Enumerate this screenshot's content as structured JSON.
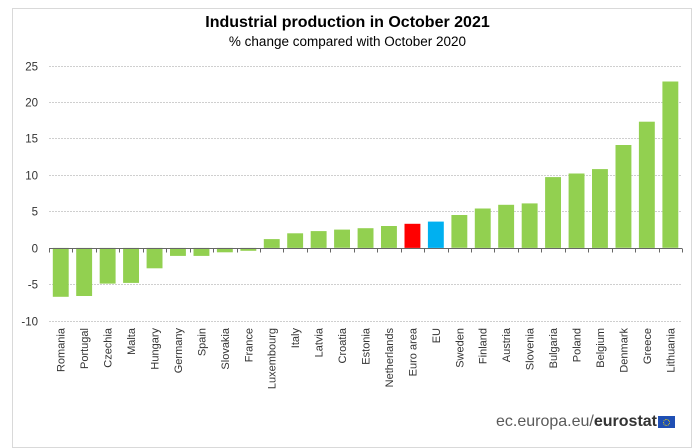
{
  "chart_data": {
    "type": "bar",
    "title": "Industrial production in October 2021",
    "subtitle": "% change compared with October 2020",
    "xlabel": "",
    "ylabel": "",
    "ylim": [
      -10,
      25
    ],
    "yticks": [
      25,
      20,
      15,
      10,
      5,
      0,
      -5,
      -10
    ],
    "grid": true,
    "legend": "none",
    "categories": [
      "Romania",
      "Portugal",
      "Czechia",
      "Malta",
      "Hungary",
      "Germany",
      "Spain",
      "Slovakia",
      "France",
      "Luxembourg",
      "Italy",
      "Latvia",
      "Croatia",
      "Estonia",
      "Netherlands",
      "Euro area",
      "EU",
      "Sweden",
      "Finland",
      "Austria",
      "Slovenia",
      "Bulgaria",
      "Poland",
      "Belgium",
      "Denmark",
      "Greece",
      "Lithuania"
    ],
    "values": [
      -6.7,
      -6.6,
      -4.9,
      -4.8,
      -2.8,
      -1.1,
      -1.1,
      -0.6,
      -0.4,
      1.2,
      2.0,
      2.3,
      2.5,
      2.7,
      3.0,
      3.3,
      3.6,
      4.5,
      5.4,
      5.9,
      6.1,
      9.7,
      10.2,
      10.8,
      14.1,
      17.3,
      22.8
    ],
    "colors": {
      "default": "#92d050",
      "Euro area": "#ff0000",
      "EU": "#00b0f0"
    }
  },
  "footer": {
    "source_prefix": "ec.europa.eu/",
    "source_brand": "eurostat"
  }
}
